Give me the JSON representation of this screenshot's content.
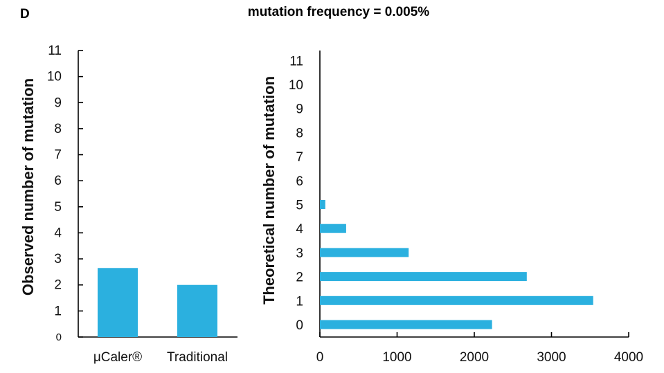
{
  "panel_label": "D",
  "figure_title": "mutation frequency = 0.005%",
  "colors": {
    "bar": "#2bb0df",
    "axis": "#000000"
  },
  "chart_data": [
    {
      "type": "bar",
      "orientation": "vertical",
      "title": "",
      "categories": [
        "μCaler®",
        "Traditional"
      ],
      "values": [
        2.65,
        2.0
      ],
      "xlabel": "",
      "ylabel": "Observed number of mutation",
      "ylim": [
        0,
        11
      ],
      "yticks": [
        "0",
        "1",
        "2",
        "3",
        "4",
        "5",
        "6",
        "7",
        "8",
        "9",
        "10",
        "11"
      ],
      "grid": false
    },
    {
      "type": "bar",
      "orientation": "horizontal",
      "title": "",
      "categories": [
        "0",
        "1",
        "2",
        "3",
        "4",
        "5",
        "6",
        "7",
        "8",
        "9",
        "10",
        "11"
      ],
      "values": [
        2230,
        3540,
        2680,
        1150,
        340,
        70,
        0,
        0,
        0,
        0,
        0,
        0
      ],
      "xlabel": "",
      "ylabel": "Theoretical number of mutation",
      "xlim": [
        0,
        4000
      ],
      "xticks": [
        "0",
        "1000",
        "2000",
        "3000",
        "4000"
      ],
      "grid": false
    }
  ]
}
